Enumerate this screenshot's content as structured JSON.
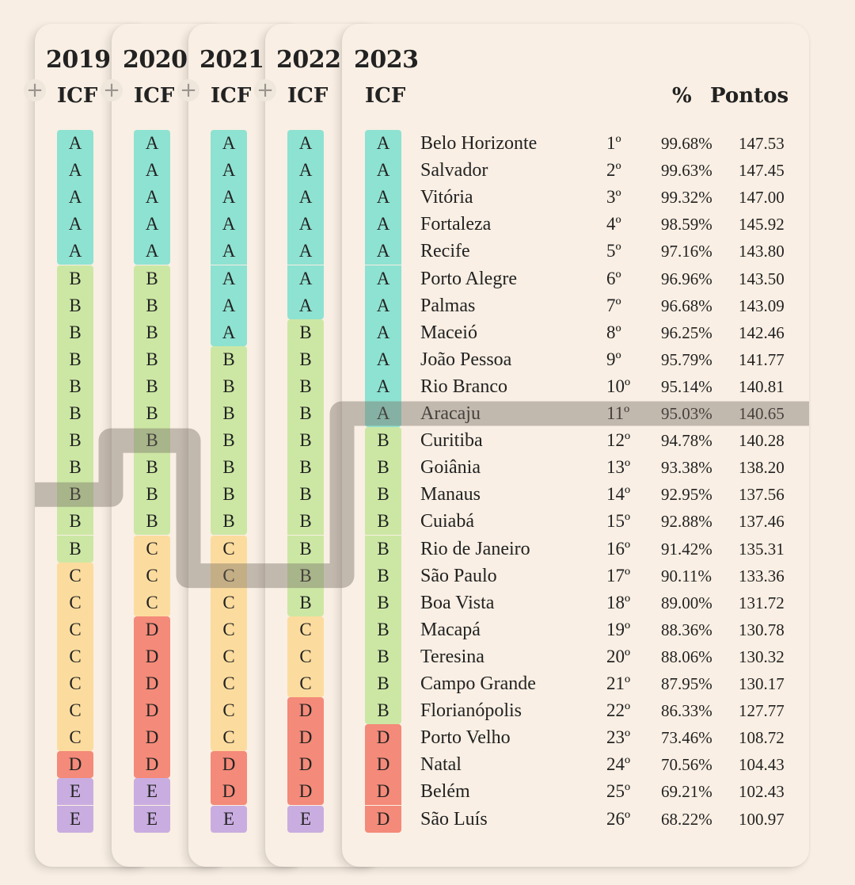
{
  "chart_data": {
    "type": "table",
    "years": [
      "2019",
      "2020",
      "2021",
      "2022",
      "2023"
    ],
    "icf_header": "ICF",
    "plus_symbol": "+",
    "pct_header": "%",
    "points_header": "Pontos",
    "grade_columns": [
      {
        "year": "2019",
        "grades": [
          "A",
          "A",
          "A",
          "A",
          "A",
          "B",
          "B",
          "B",
          "B",
          "B",
          "B",
          "B",
          "B",
          "B",
          "B",
          "B",
          "C",
          "C",
          "C",
          "C",
          "C",
          "C",
          "C",
          "D",
          "E",
          "E"
        ]
      },
      {
        "year": "2020",
        "grades": [
          "A",
          "A",
          "A",
          "A",
          "A",
          "B",
          "B",
          "B",
          "B",
          "B",
          "B",
          "B",
          "B",
          "B",
          "B",
          "C",
          "C",
          "C",
          "D",
          "D",
          "D",
          "D",
          "D",
          "D",
          "E",
          "E"
        ]
      },
      {
        "year": "2021",
        "grades": [
          "A",
          "A",
          "A",
          "A",
          "A",
          "A",
          "A",
          "A",
          "B",
          "B",
          "B",
          "B",
          "B",
          "B",
          "B",
          "C",
          "C",
          "C",
          "C",
          "C",
          "C",
          "C",
          "C",
          "D",
          "D",
          "E"
        ]
      },
      {
        "year": "2022",
        "grades": [
          "A",
          "A",
          "A",
          "A",
          "A",
          "A",
          "A",
          "B",
          "B",
          "B",
          "B",
          "B",
          "B",
          "B",
          "B",
          "B",
          "B",
          "B",
          "C",
          "C",
          "C",
          "D",
          "D",
          "D",
          "D",
          "E"
        ]
      }
    ],
    "rows": [
      {
        "grade": "A",
        "city": "Belo Horizonte",
        "rank": "1º",
        "pct": "99.68%",
        "points": "147.53"
      },
      {
        "grade": "A",
        "city": "Salvador",
        "rank": "2º",
        "pct": "99.63%",
        "points": "147.45"
      },
      {
        "grade": "A",
        "city": "Vitória",
        "rank": "3º",
        "pct": "99.32%",
        "points": "147.00"
      },
      {
        "grade": "A",
        "city": "Fortaleza",
        "rank": "4º",
        "pct": "98.59%",
        "points": "145.92"
      },
      {
        "grade": "A",
        "city": "Recife",
        "rank": "5º",
        "pct": "97.16%",
        "points": "143.80"
      },
      {
        "grade": "A",
        "city": "Porto Alegre",
        "rank": "6º",
        "pct": "96.96%",
        "points": "143.50"
      },
      {
        "grade": "A",
        "city": "Palmas",
        "rank": "7º",
        "pct": "96.68%",
        "points": "143.09"
      },
      {
        "grade": "A",
        "city": "Maceió",
        "rank": "8º",
        "pct": "96.25%",
        "points": "142.46"
      },
      {
        "grade": "A",
        "city": "João Pessoa",
        "rank": "9º",
        "pct": "95.79%",
        "points": "141.77"
      },
      {
        "grade": "A",
        "city": "Rio Branco",
        "rank": "10º",
        "pct": "95.14%",
        "points": "140.81"
      },
      {
        "grade": "A",
        "city": "Aracaju",
        "rank": "11º",
        "pct": "95.03%",
        "points": "140.65"
      },
      {
        "grade": "B",
        "city": "Curitiba",
        "rank": "12º",
        "pct": "94.78%",
        "points": "140.28"
      },
      {
        "grade": "B",
        "city": "Goiânia",
        "rank": "13º",
        "pct": "93.38%",
        "points": "138.20"
      },
      {
        "grade": "B",
        "city": "Manaus",
        "rank": "14º",
        "pct": "92.95%",
        "points": "137.56"
      },
      {
        "grade": "B",
        "city": "Cuiabá",
        "rank": "15º",
        "pct": "92.88%",
        "points": "137.46"
      },
      {
        "grade": "B",
        "city": "Rio de Janeiro",
        "rank": "16º",
        "pct": "91.42%",
        "points": "135.31"
      },
      {
        "grade": "B",
        "city": "São Paulo",
        "rank": "17º",
        "pct": "90.11%",
        "points": "133.36"
      },
      {
        "grade": "B",
        "city": "Boa Vista",
        "rank": "18º",
        "pct": "89.00%",
        "points": "131.72"
      },
      {
        "grade": "B",
        "city": "Macapá",
        "rank": "19º",
        "pct": "88.36%",
        "points": "130.78"
      },
      {
        "grade": "B",
        "city": "Teresina",
        "rank": "20º",
        "pct": "88.06%",
        "points": "130.32"
      },
      {
        "grade": "B",
        "city": "Campo Grande",
        "rank": "21º",
        "pct": "87.95%",
        "points": "130.17"
      },
      {
        "grade": "B",
        "city": "Florianópolis",
        "rank": "22º",
        "pct": "86.33%",
        "points": "127.77"
      },
      {
        "grade": "D",
        "city": "Porto Velho",
        "rank": "23º",
        "pct": "73.46%",
        "points": "108.72"
      },
      {
        "grade": "D",
        "city": "Natal",
        "rank": "24º",
        "pct": "70.56%",
        "points": "104.43"
      },
      {
        "grade": "D",
        "city": "Belém",
        "rank": "25º",
        "pct": "69.21%",
        "points": "102.43"
      },
      {
        "grade": "D",
        "city": "São Luís",
        "rank": "26º",
        "pct": "68.22%",
        "points": "100.97"
      }
    ],
    "highlight": {
      "city": "Aracaju",
      "positions_by_year": {
        "2019": 14,
        "2020": 12,
        "2021": 17,
        "2022": 17,
        "2023": 11
      }
    },
    "grade_colors": {
      "A": "#8ee2d1",
      "B": "#cce7a4",
      "C": "#fcdc9e",
      "D": "#f48a79",
      "E": "#c9ade0"
    }
  }
}
